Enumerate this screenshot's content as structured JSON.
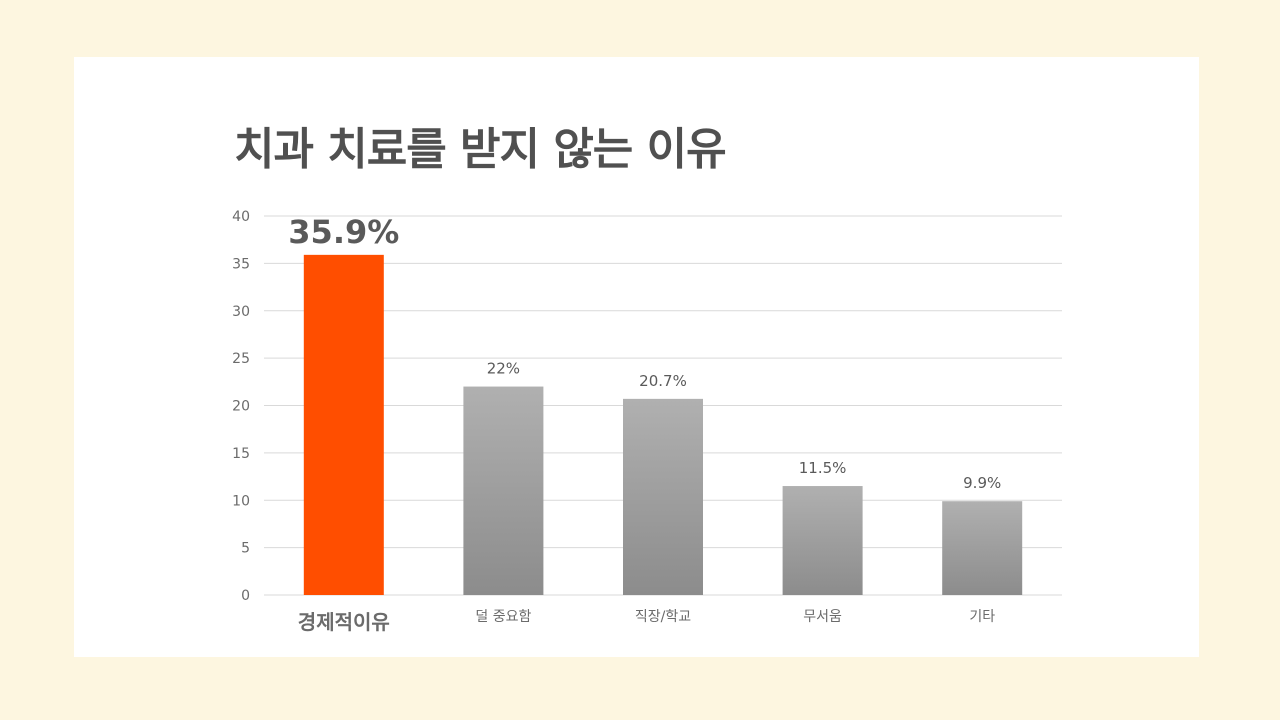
{
  "title": "치과 치료를 받지 않는 이유",
  "colors": {
    "page_background": "#fdf6e0",
    "card_background": "#ffffff",
    "highlight_bar": "#ff4e00",
    "highlight_label": "#ff4e00",
    "highlight_value": "#ff0000",
    "gray_bar_top": "#b0b0b0",
    "gray_bar_bottom": "#8c8c8c",
    "grid": "#d9d9d9"
  },
  "chart_data": {
    "type": "bar",
    "title": "치과 치료를 받지 않는 이유",
    "categories": [
      "경제적이유",
      "덜 중요함",
      "직장/학교",
      "무서움",
      "기타"
    ],
    "values": [
      35.9,
      22,
      20.7,
      11.5,
      9.9
    ],
    "data_labels": [
      "35.9%",
      "22%",
      "20.7%",
      "11.5%",
      "9.9%"
    ],
    "highlight_index": 0,
    "ylim": [
      0,
      40
    ],
    "yticks": [
      0,
      5,
      10,
      15,
      20,
      25,
      30,
      35,
      40
    ],
    "xlabel": "",
    "ylabel": "",
    "grid": true,
    "legend": "none"
  }
}
